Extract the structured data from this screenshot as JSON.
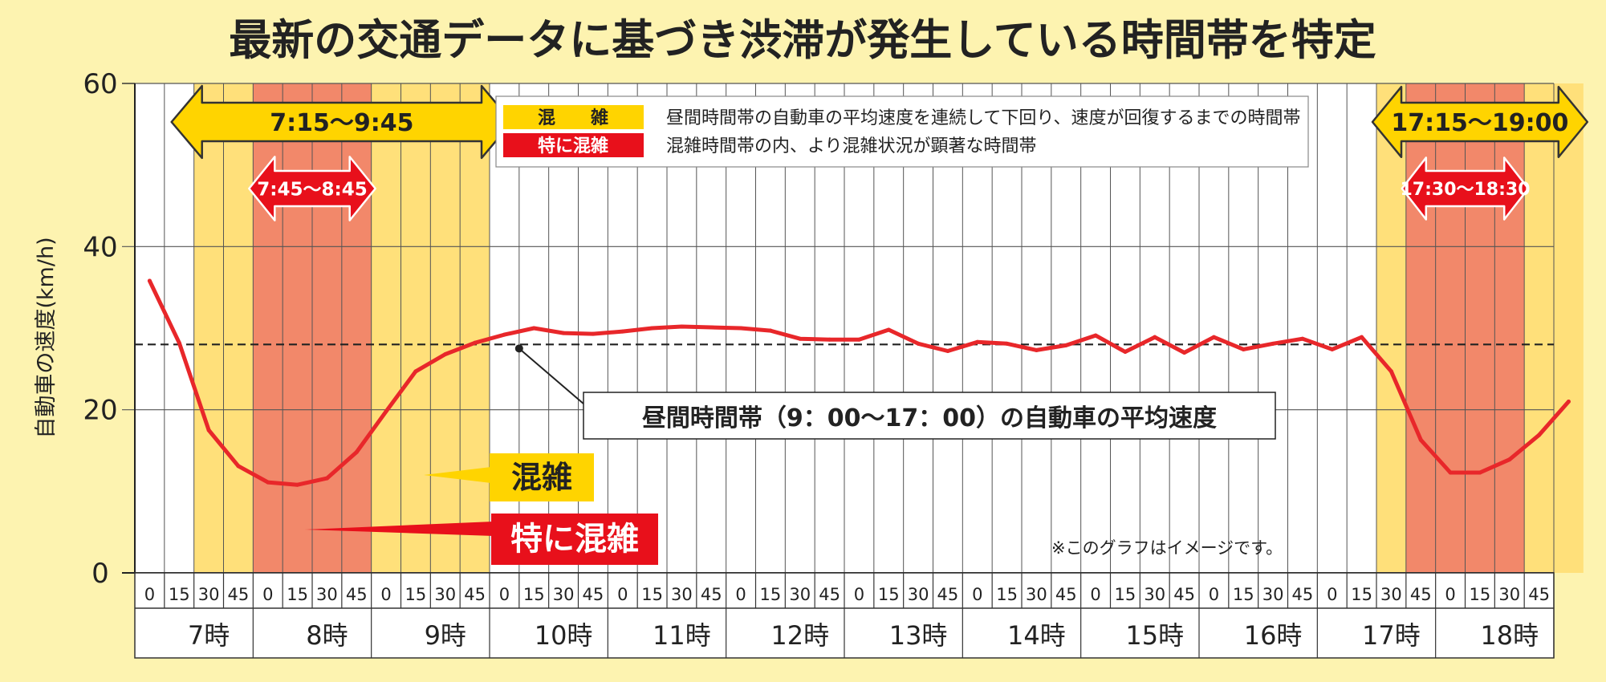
{
  "chart_data": {
    "type": "line",
    "title": "最新の交通データに基づき渋滞が発生している時間帯を特定",
    "ylabel": "自動車の速度(km/h)",
    "ylim": [
      0,
      60
    ],
    "yticks": [
      "0",
      "20",
      "40",
      "60"
    ],
    "x_subticks": [
      "0",
      "15",
      "30",
      "45"
    ],
    "hours": [
      "7時",
      "8時",
      "9時",
      "10時",
      "11時",
      "12時",
      "13時",
      "14時",
      "15時",
      "16時",
      "17時",
      "18時"
    ],
    "series": [
      {
        "name": "",
        "color": "#e8272a",
        "x": [
          6.875,
          7.125,
          7.375,
          7.625,
          7.875,
          8.125,
          8.375,
          8.625,
          8.875,
          9.125,
          9.375,
          9.625,
          9.875,
          10.125,
          10.375,
          10.625,
          10.875,
          11.125,
          11.375,
          11.625,
          11.875,
          12.125,
          12.375,
          12.625,
          12.875,
          13.125,
          13.375,
          13.625,
          13.875,
          14.125,
          14.375,
          14.625,
          14.875,
          15.125,
          15.375,
          15.625,
          15.875,
          16.125,
          16.375,
          16.625,
          16.875,
          17.125,
          17.375,
          17.625,
          17.875,
          18.125,
          18.375,
          18.625,
          18.875
        ],
        "values": [
          35.8,
          28.2,
          17.5,
          13.1,
          11.1,
          10.8,
          11.6,
          14.8,
          19.8,
          24.7,
          26.8,
          28.2,
          29.2,
          30.0,
          29.4,
          29.3,
          29.6,
          30.0,
          30.2,
          30.1,
          30.0,
          29.7,
          28.7,
          28.6,
          28.6,
          29.8,
          28.1,
          27.2,
          28.3,
          28.1,
          27.3,
          27.9,
          29.1,
          27.1,
          28.9,
          27.0,
          28.9,
          27.4,
          28.1,
          28.7,
          27.4,
          28.9,
          24.7,
          16.3,
          12.3,
          12.3,
          13.9,
          16.9,
          21.0
        ]
      }
    ],
    "reference_line": {
      "value": 28,
      "label": "昼間時間帯（9：00〜17：00）の自動車の平均速度"
    },
    "bands": [
      {
        "kind": "congestion",
        "from": 7.25,
        "to": 9.75,
        "label": "7:15〜9:45",
        "color": "#ffe07a"
      },
      {
        "kind": "heavy",
        "from": 7.75,
        "to": 8.75,
        "label": "7:45〜8:45",
        "color": "#f2886a"
      },
      {
        "kind": "congestion",
        "from": 17.25,
        "to": 19.0,
        "label": "17:15〜19:00",
        "color": "#ffe07a"
      },
      {
        "kind": "heavy",
        "from": 17.5,
        "to": 18.5,
        "label": "17:30〜18:30",
        "color": "#f2886a"
      }
    ],
    "legend": [
      {
        "key": "混　　雑",
        "text": "昼間時間帯の自動車の平均速度を連続して下回り、速度が回復するまでの時間帯",
        "color": "#ffd400",
        "text_color": "#222222"
      },
      {
        "key": "特に混雑",
        "text": "混雑時間帯の内、より混雑状況が顕著な時間帯",
        "color": "#e8101b",
        "text_color": "#ffffff"
      }
    ],
    "callouts": [
      {
        "label": "混雑",
        "color": "#ffd400",
        "text_color": "#222222"
      },
      {
        "label": "特に混雑",
        "color": "#e8101b",
        "text_color": "#ffffff"
      }
    ],
    "note": "※このグラフはイメージです。",
    "grid": true,
    "legend_position": "top-center"
  }
}
